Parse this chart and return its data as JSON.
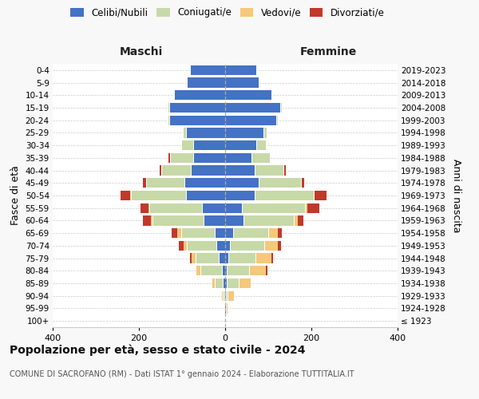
{
  "age_groups": [
    "100+",
    "95-99",
    "90-94",
    "85-89",
    "80-84",
    "75-79",
    "70-74",
    "65-69",
    "60-64",
    "55-59",
    "50-54",
    "45-49",
    "40-44",
    "35-39",
    "30-34",
    "25-29",
    "20-24",
    "15-19",
    "10-14",
    "5-9",
    "0-4"
  ],
  "birth_years": [
    "≤ 1923",
    "1924-1928",
    "1929-1933",
    "1934-1938",
    "1939-1943",
    "1944-1948",
    "1949-1953",
    "1954-1958",
    "1959-1963",
    "1964-1968",
    "1969-1973",
    "1974-1978",
    "1979-1983",
    "1984-1988",
    "1989-1993",
    "1994-1998",
    "1999-2003",
    "2004-2008",
    "2009-2013",
    "2014-2018",
    "2019-2023"
  ],
  "colors": {
    "celibi": "#4472c4",
    "coniugati": "#c8d9a8",
    "vedovi": "#f5c87a",
    "divorziati": "#c0392b"
  },
  "maschi": {
    "celibi": [
      0,
      1,
      2,
      5,
      8,
      14,
      20,
      24,
      50,
      54,
      90,
      95,
      80,
      75,
      74,
      90,
      130,
      130,
      118,
      88,
      82
    ],
    "coniugati": [
      0,
      0,
      3,
      20,
      50,
      54,
      68,
      78,
      118,
      122,
      128,
      88,
      68,
      52,
      28,
      8,
      4,
      4,
      2,
      0,
      0
    ],
    "vedovi": [
      0,
      0,
      2,
      4,
      8,
      9,
      9,
      9,
      4,
      2,
      2,
      0,
      0,
      0,
      0,
      0,
      0,
      0,
      0,
      0,
      0
    ],
    "divorziati": [
      0,
      0,
      0,
      0,
      0,
      5,
      10,
      14,
      18,
      18,
      22,
      8,
      4,
      4,
      0,
      0,
      0,
      0,
      0,
      0,
      0
    ]
  },
  "femmine": {
    "nubili": [
      0,
      1,
      2,
      4,
      4,
      8,
      12,
      18,
      42,
      38,
      68,
      78,
      68,
      62,
      72,
      88,
      118,
      128,
      108,
      78,
      72
    ],
    "coniugate": [
      0,
      1,
      4,
      28,
      52,
      62,
      78,
      82,
      118,
      148,
      138,
      98,
      68,
      42,
      22,
      8,
      4,
      4,
      2,
      0,
      0
    ],
    "vedove": [
      0,
      4,
      14,
      28,
      38,
      38,
      32,
      22,
      8,
      4,
      2,
      0,
      0,
      0,
      0,
      0,
      0,
      0,
      0,
      0,
      0
    ],
    "divorziate": [
      0,
      0,
      0,
      0,
      4,
      4,
      7,
      9,
      13,
      28,
      28,
      8,
      4,
      2,
      0,
      0,
      0,
      0,
      0,
      0,
      0
    ]
  },
  "title_main": "Popolazione per età, sesso e stato civile - 2024",
  "title_sub": "COMUNE DI SACROFANO (RM) - Dati ISTAT 1° gennaio 2024 - Elaborazione TUTTITALIA.IT",
  "xlabel_left": "Maschi",
  "xlabel_right": "Femmine",
  "ylabel_left": "Fasce di età",
  "ylabel_right": "Anni di nascita",
  "xlim": 400,
  "legend_labels": [
    "Celibi/Nubili",
    "Coniugati/e",
    "Vedovi/e",
    "Divorziati/e"
  ],
  "bg_color": "#f8f8f8",
  "plot_bg_color": "#ffffff"
}
